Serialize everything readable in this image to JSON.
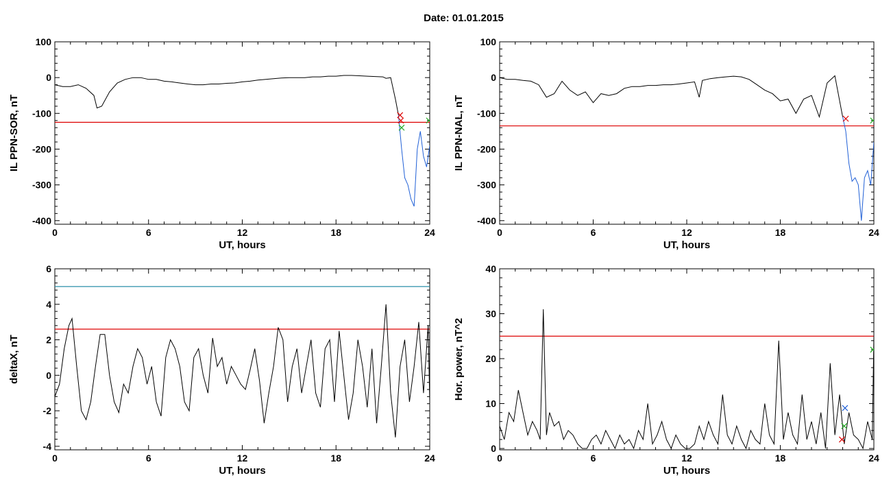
{
  "page": {
    "title": "Date:  01.01.2015"
  },
  "chart_data": [
    {
      "type": "line",
      "xlabel": "UT, hours",
      "ylabel": "IL PPN-SOR, nT",
      "xlim": [
        0,
        24
      ],
      "ylim": [
        -410,
        100
      ],
      "xticks": [
        0,
        6,
        12,
        18,
        24
      ],
      "yticks": [
        100,
        0,
        -100,
        -200,
        -300,
        -400
      ],
      "threshold": -125,
      "colors": {
        "main": "#000000",
        "threshold": "#dd0000",
        "highlight": "#1f5fd6",
        "marker_red": "#dd0000",
        "marker_green": "#22aa22"
      },
      "series": [
        {
          "x": [
            0,
            0.5,
            1,
            1.5,
            2,
            2.5,
            2.7,
            3,
            3.5,
            4,
            4.5,
            5,
            5.5,
            6,
            6.5,
            7,
            7.5,
            8,
            8.5,
            9,
            9.5,
            10,
            10.5,
            11,
            11.5,
            12,
            12.5,
            13,
            13.5,
            14,
            14.5,
            15,
            15.5,
            16,
            16.5,
            17,
            17.5,
            18,
            18.5,
            19,
            19.5,
            20,
            20.5,
            21,
            21.2,
            21.5,
            21.8,
            22
          ],
          "y": [
            -20,
            -25,
            -25,
            -20,
            -30,
            -50,
            -85,
            -80,
            -40,
            -15,
            -5,
            0,
            0,
            -5,
            -5,
            -10,
            -12,
            -15,
            -18,
            -20,
            -20,
            -18,
            -18,
            -16,
            -15,
            -12,
            -10,
            -7,
            -5,
            -3,
            -1,
            0,
            0,
            0,
            2,
            2,
            4,
            4,
            6,
            6,
            5,
            4,
            3,
            2,
            -2,
            0,
            -60,
            -105
          ]
        },
        {
          "x": [
            22,
            22.2,
            22.4,
            22.6,
            22.8,
            23,
            23.2,
            23.4,
            23.6,
            23.8,
            24
          ],
          "y": [
            -105,
            -200,
            -280,
            -300,
            -340,
            -360,
            -200,
            -150,
            -220,
            -250,
            -190
          ]
        }
      ],
      "markers": [
        {
          "x": 22.1,
          "y": -105,
          "color": "marker_red"
        },
        {
          "x": 22.15,
          "y": -120,
          "color": "marker_red"
        },
        {
          "x": 22.2,
          "y": -140,
          "color": "marker_green"
        },
        {
          "x": 23.95,
          "y": -120,
          "color": "marker_green"
        }
      ]
    },
    {
      "type": "line",
      "xlabel": "UT, hours",
      "ylabel": "IL PPN-NAL, nT",
      "xlim": [
        0,
        24
      ],
      "ylim": [
        -410,
        100
      ],
      "xticks": [
        0,
        6,
        12,
        18,
        24
      ],
      "yticks": [
        100,
        0,
        -100,
        -200,
        -300,
        -400
      ],
      "threshold": -135,
      "colors": {
        "main": "#000000",
        "threshold": "#dd0000",
        "highlight": "#1f5fd6",
        "marker_red": "#dd0000",
        "marker_green": "#22aa22"
      },
      "series": [
        {
          "x": [
            0,
            0.5,
            1,
            1.5,
            2,
            2.5,
            3,
            3.5,
            4,
            4.5,
            5,
            5.5,
            6,
            6.5,
            7,
            7.5,
            8,
            8.5,
            9,
            9.5,
            10,
            10.5,
            11,
            11.5,
            12,
            12.5,
            12.8,
            13,
            13.5,
            14,
            14.5,
            15,
            15.5,
            16,
            16.5,
            17,
            17.5,
            18,
            18.5,
            19,
            19.5,
            20,
            20.5,
            21,
            21.5,
            22
          ],
          "y": [
            0,
            -5,
            -5,
            -8,
            -10,
            -20,
            -55,
            -45,
            -10,
            -35,
            -50,
            -40,
            -70,
            -45,
            -50,
            -45,
            -30,
            -25,
            -25,
            -22,
            -22,
            -20,
            -20,
            -18,
            -15,
            -12,
            -55,
            -8,
            -3,
            0,
            2,
            4,
            2,
            -5,
            -20,
            -35,
            -45,
            -65,
            -60,
            -100,
            -60,
            -50,
            -110,
            -15,
            5,
            -110
          ]
        },
        {
          "x": [
            22,
            22.2,
            22.4,
            22.6,
            22.8,
            23,
            23.2,
            23.4,
            23.6,
            23.8,
            24
          ],
          "y": [
            -110,
            -150,
            -240,
            -290,
            -280,
            -300,
            -400,
            -280,
            -260,
            -300,
            -180
          ]
        }
      ],
      "markers": [
        {
          "x": 22.2,
          "y": -115,
          "color": "marker_red"
        },
        {
          "x": 23.95,
          "y": -120,
          "color": "marker_green"
        }
      ]
    },
    {
      "type": "line",
      "xlabel": "UT, hours",
      "ylabel": "deltaX, nT",
      "xlim": [
        0,
        24
      ],
      "ylim": [
        -4.2,
        6
      ],
      "xticks": [
        0,
        6,
        12,
        18,
        24
      ],
      "yticks": [
        6,
        4,
        2,
        0,
        -2,
        -4
      ],
      "thresholds": [
        {
          "value": 5,
          "color": "#2a8fa8"
        },
        {
          "value": 2.6,
          "color": "#dd0000"
        }
      ],
      "colors": {
        "main": "#000000"
      },
      "series": [
        {
          "x": [
            0,
            0.3,
            0.6,
            0.9,
            1.1,
            1.4,
            1.7,
            2,
            2.3,
            2.6,
            2.9,
            3.2,
            3.5,
            3.8,
            4.1,
            4.4,
            4.7,
            5,
            5.3,
            5.6,
            5.9,
            6.2,
            6.5,
            6.8,
            7.1,
            7.4,
            7.7,
            8,
            8.3,
            8.6,
            8.9,
            9.2,
            9.5,
            9.8,
            10.1,
            10.4,
            10.7,
            11,
            11.3,
            11.6,
            11.9,
            12.2,
            12.5,
            12.8,
            13.1,
            13.4,
            13.7,
            14,
            14.3,
            14.6,
            14.9,
            15.2,
            15.5,
            15.8,
            16.1,
            16.4,
            16.7,
            17,
            17.3,
            17.6,
            17.9,
            18.2,
            18.5,
            18.8,
            19.1,
            19.4,
            19.7,
            20,
            20.3,
            20.6,
            20.9,
            21.2,
            21.5,
            21.8,
            22.1,
            22.4,
            22.7,
            23,
            23.3,
            23.6,
            23.9,
            24
          ],
          "y": [
            -1.2,
            -0.5,
            1.5,
            2.8,
            3.2,
            0.5,
            -2,
            -2.5,
            -1.5,
            0.5,
            2.3,
            2.3,
            0,
            -1.5,
            -2.1,
            -0.5,
            -1,
            0.5,
            1.5,
            1,
            -0.5,
            0.5,
            -1.5,
            -2.3,
            1,
            2,
            1.5,
            0.5,
            -1.5,
            -2,
            1,
            1.5,
            0,
            -1,
            2.1,
            0.5,
            1,
            -0.5,
            0.5,
            0,
            -0.5,
            -0.8,
            0.3,
            1.5,
            -0.3,
            -2.7,
            -1,
            0.5,
            2.7,
            2,
            -1.5,
            0.5,
            1.5,
            -1,
            0.5,
            2,
            -1,
            -1.8,
            1.5,
            2,
            -1.5,
            2.5,
            0,
            -2.5,
            -1,
            2,
            0.5,
            -1.8,
            1.5,
            -2.7,
            0.5,
            4,
            -1,
            -3.5,
            0.5,
            2,
            -1.5,
            0.5,
            3,
            -1,
            2.8,
            -1.5
          ]
        }
      ]
    },
    {
      "type": "line",
      "xlabel": "UT, hours",
      "ylabel": "Hor. power, nT^2",
      "xlim": [
        0,
        24
      ],
      "ylim": [
        -0.3,
        40
      ],
      "xticks": [
        0,
        6,
        12,
        18,
        24
      ],
      "yticks": [
        40,
        30,
        20,
        10,
        0
      ],
      "threshold": 25,
      "colors": {
        "main": "#000000",
        "threshold": "#dd0000",
        "marker_red": "#dd0000",
        "marker_green": "#22aa22",
        "marker_blue": "#1f5fd6"
      },
      "series": [
        {
          "x": [
            0,
            0.3,
            0.6,
            0.9,
            1.2,
            1.5,
            1.8,
            2.1,
            2.4,
            2.6,
            2.8,
            3,
            3.2,
            3.5,
            3.8,
            4.1,
            4.4,
            4.7,
            5,
            5.3,
            5.6,
            5.9,
            6.2,
            6.5,
            6.8,
            7.1,
            7.4,
            7.7,
            8,
            8.3,
            8.6,
            8.9,
            9.2,
            9.5,
            9.8,
            10.1,
            10.4,
            10.7,
            11,
            11.3,
            11.6,
            11.9,
            12.2,
            12.5,
            12.8,
            13.1,
            13.4,
            13.7,
            14,
            14.3,
            14.6,
            14.9,
            15.2,
            15.5,
            15.8,
            16.1,
            16.4,
            16.7,
            17,
            17.3,
            17.6,
            17.9,
            18.2,
            18.5,
            18.8,
            19.1,
            19.4,
            19.7,
            20,
            20.3,
            20.6,
            20.9,
            21.2,
            21.5,
            21.8,
            22.1,
            22.4,
            22.7,
            23,
            23.3,
            23.6,
            23.9,
            24
          ],
          "y": [
            5,
            2,
            8,
            6,
            13,
            8,
            3,
            6,
            4,
            2,
            31,
            3,
            8,
            5,
            6,
            2,
            4,
            3,
            1,
            0,
            0,
            2,
            3,
            1,
            4,
            2,
            0,
            3,
            1,
            2,
            0,
            4,
            2,
            10,
            1,
            3,
            6,
            2,
            0,
            3,
            1,
            0,
            0,
            1,
            5,
            2,
            6,
            3,
            1,
            12,
            3,
            1,
            5,
            2,
            0,
            4,
            2,
            1,
            10,
            3,
            1,
            24,
            2,
            8,
            3,
            1,
            12,
            2,
            6,
            1,
            8,
            0,
            19,
            3,
            12,
            1,
            8,
            3,
            2,
            0,
            6,
            2,
            25
          ]
        }
      ],
      "markers": [
        {
          "x": 21.95,
          "y": 2,
          "color": "marker_red"
        },
        {
          "x": 22.1,
          "y": 5,
          "color": "marker_green"
        },
        {
          "x": 22.15,
          "y": 9,
          "color": "marker_blue"
        },
        {
          "x": 23.95,
          "y": 22,
          "color": "marker_green"
        }
      ]
    }
  ]
}
